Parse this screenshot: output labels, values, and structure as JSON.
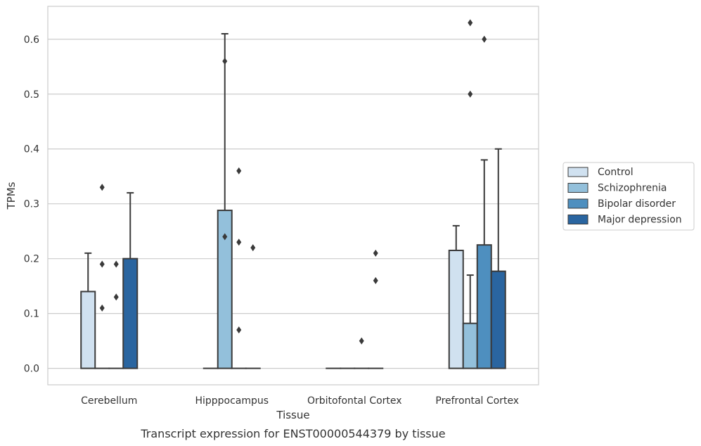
{
  "caption": "Transcript expression for ENST00000544379 by tissue",
  "chart_data": {
    "type": "bar",
    "title": "",
    "xlabel": "Tissue",
    "ylabel": "TPMs",
    "ylim": [
      -0.03,
      0.66
    ],
    "yticks": [
      "0.0",
      "0.1",
      "0.2",
      "0.3",
      "0.4",
      "0.5",
      "0.6"
    ],
    "grid": true,
    "legend_position": "right",
    "categories": [
      "Cerebellum",
      "Hipppocampus",
      "Orbitofontal Cortex",
      "Prefrontal Cortex"
    ],
    "series": [
      {
        "name": "Control",
        "color": "#d0e1f0",
        "values": [
          0.14,
          0.0,
          0.0,
          0.215
        ],
        "whisker_high": [
          0.21,
          null,
          null,
          0.26
        ],
        "outliers": [
          [],
          [],
          [],
          []
        ]
      },
      {
        "name": "Schizophrenia",
        "color": "#93c0db",
        "values": [
          0.0,
          0.288,
          0.0,
          0.082
        ],
        "whisker_high": [
          null,
          0.61,
          null,
          0.17
        ],
        "outliers": [
          [
            0.33,
            0.19,
            0.11
          ],
          [
            0.56,
            0.24
          ],
          [],
          [
            0.63,
            0.5
          ]
        ]
      },
      {
        "name": "Bipolar disorder",
        "color": "#4e8fbf",
        "values": [
          0.0,
          0.0,
          0.0,
          0.225
        ],
        "whisker_high": [
          null,
          null,
          null,
          0.38
        ],
        "outliers": [
          [
            0.19,
            0.13
          ],
          [
            0.36,
            0.23,
            0.07
          ],
          [
            0.05
          ],
          [
            0.6
          ]
        ]
      },
      {
        "name": "Major depression",
        "color": "#2a65a0",
        "values": [
          0.2,
          0.0,
          0.0,
          0.177
        ],
        "whisker_high": [
          0.32,
          null,
          null,
          0.4
        ],
        "outliers": [
          [],
          [
            0.22
          ],
          [
            0.21,
            0.16
          ],
          []
        ]
      }
    ]
  }
}
